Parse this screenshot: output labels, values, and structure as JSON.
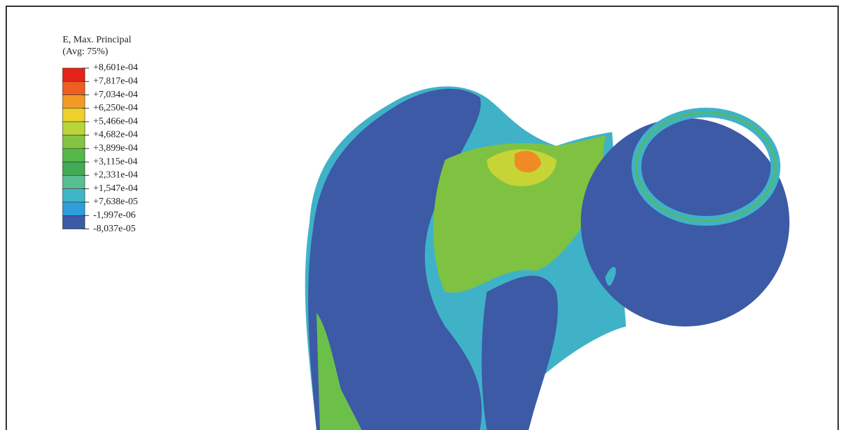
{
  "legend": {
    "title": "E, Max. Principal",
    "subtitle": "(Avg: 75%)",
    "labels": [
      "+8,601e-04",
      "+7,817e-04",
      "+7,034e-04",
      "+6,250e-04",
      "+5,466e-04",
      "+4,682e-04",
      "+3,899e-04",
      "+3,115e-04",
      "+2,331e-04",
      "+1,547e-04",
      "+7,638e-05",
      "-1,997e-06",
      "-8,037e-05"
    ]
  }
}
